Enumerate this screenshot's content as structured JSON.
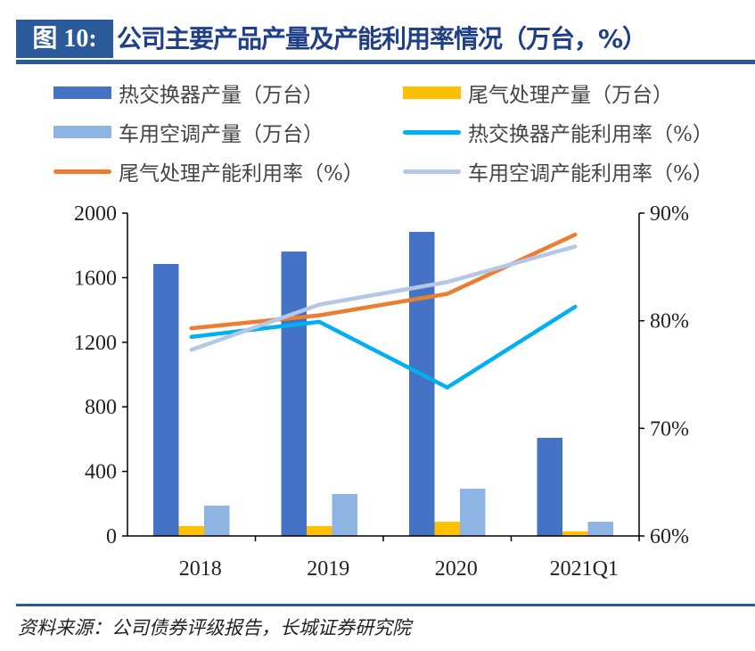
{
  "header": {
    "figure_label": "图 10:",
    "title": "公司主要产品产量及产能利用率情况（万台，%）"
  },
  "source": "资料来源：公司债券评级报告，长城证券研究院",
  "chart_data": {
    "type": "bar+line",
    "categories": [
      "2018",
      "2019",
      "2020",
      "2021Q1"
    ],
    "y_left": {
      "range": [
        0,
        2000
      ],
      "ticks": [
        "0",
        "400",
        "800",
        "1200",
        "1600",
        "2000"
      ]
    },
    "y_right": {
      "range": [
        60,
        90
      ],
      "ticks": [
        "60%",
        "70%",
        "80%",
        "90%"
      ]
    },
    "legend_position": "top",
    "series": [
      {
        "name": "热交换器产量（万台）",
        "kind": "bar",
        "axis": "left",
        "color": "#4472c4",
        "values": [
          1685,
          1762,
          1884,
          608
        ]
      },
      {
        "name": "尾气处理产量（万台）",
        "kind": "bar",
        "axis": "left",
        "color": "#ffc000",
        "values": [
          61,
          61,
          88,
          28
        ]
      },
      {
        "name": "车用空调产量（万台）",
        "kind": "bar",
        "axis": "left",
        "color": "#8eb4e3",
        "values": [
          188,
          260,
          293,
          88
        ]
      },
      {
        "name": "热交换器产能利用率（%）",
        "kind": "line",
        "axis": "right",
        "color": "#00b0f0",
        "values": [
          78.5,
          79.9,
          73.8,
          81.3
        ]
      },
      {
        "name": "尾气处理产能利用率（%）",
        "kind": "line",
        "axis": "right",
        "color": "#ed7d31",
        "values": [
          79.3,
          80.5,
          82.5,
          88.0
        ]
      },
      {
        "name": "车用空调产能利用率（%）",
        "kind": "line",
        "axis": "right",
        "color": "#b4c7e7",
        "values": [
          77.3,
          81.5,
          83.6,
          86.9
        ]
      }
    ]
  }
}
